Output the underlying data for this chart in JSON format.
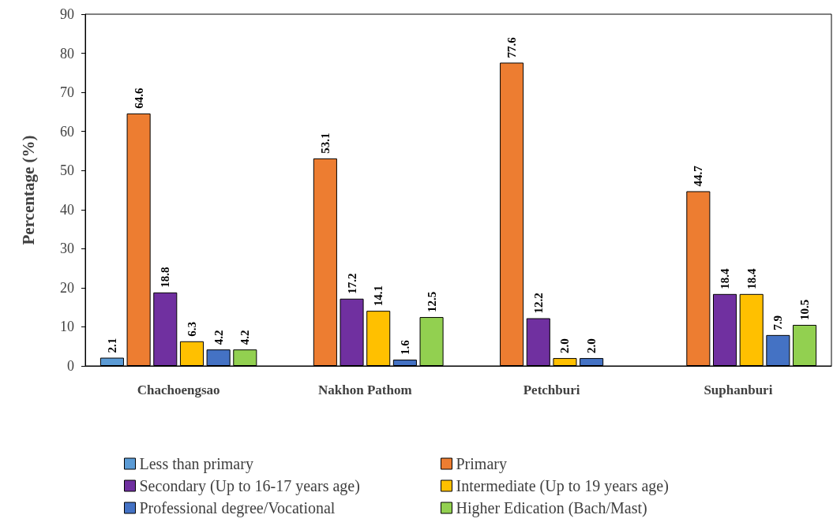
{
  "chart_data": {
    "type": "bar",
    "ylabel": "Percentage (%)",
    "categories": [
      "Chachoengsao",
      "Nakhon Pathom",
      "Petchburi",
      "Suphanburi"
    ],
    "series": [
      {
        "name": "Less than primary",
        "color": "#5b9bd5",
        "values": [
          2.1,
          null,
          null,
          null
        ],
        "value_labels": [
          "2.1",
          null,
          null,
          null
        ]
      },
      {
        "name": "Primary",
        "color": "#ed7d31",
        "values": [
          64.6,
          53.1,
          77.6,
          44.7
        ],
        "value_labels": [
          "64.6",
          "53.1",
          "77.6",
          "44.7"
        ]
      },
      {
        "name": "Secondary (Up to 16-17 years age)",
        "color": "#7030a0",
        "values": [
          18.8,
          17.2,
          12.2,
          18.4
        ],
        "value_labels": [
          "18.8",
          "17.2",
          "12.2",
          "18.4"
        ]
      },
      {
        "name": "Intermediate (Up to 19 years age)",
        "color": "#ffc000",
        "values": [
          6.3,
          14.1,
          2.0,
          18.4
        ],
        "value_labels": [
          "6.3",
          "14.1",
          "2.0",
          "18.4"
        ]
      },
      {
        "name": "Professional degree/Vocational",
        "color": "#4472c4",
        "values": [
          4.2,
          1.6,
          2.0,
          7.9
        ],
        "value_labels": [
          "4.2",
          "1.6",
          "2.0",
          "7.9"
        ]
      },
      {
        "name": "Higher Edication (Bach/Mast)",
        "color": "#92d050",
        "values": [
          4.2,
          12.5,
          null,
          10.5
        ],
        "value_labels": [
          "4.2",
          "12.5",
          null,
          "10.5"
        ]
      }
    ],
    "ylim": [
      0,
      90
    ],
    "yticks": [
      0,
      10,
      20,
      30,
      40,
      50,
      60,
      70,
      80,
      90
    ],
    "grid": false,
    "legend": "bottom"
  }
}
